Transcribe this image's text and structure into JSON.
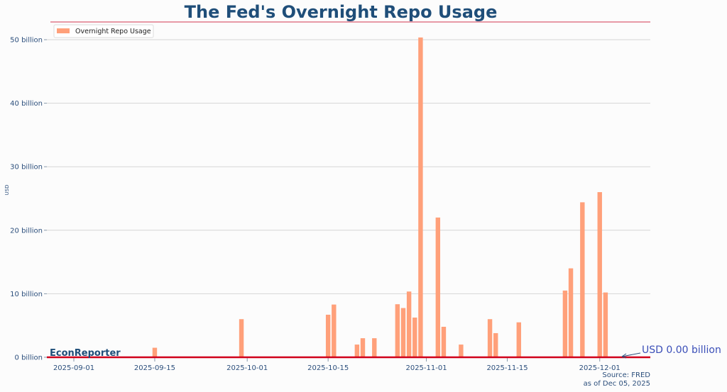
{
  "chart_data": {
    "type": "bar",
    "title": "The Fed's Overnight Repo Usage",
    "ylabel": "USD",
    "xlabel": "",
    "ylim": [
      0,
      52
    ],
    "y_ticks": [
      "0 billion",
      "10 billion",
      "20 billion",
      "30 billion",
      "40 billion",
      "50 billion"
    ],
    "x_ticks": [
      "2025-09-01",
      "2025-09-15",
      "2025-10-01",
      "2025-10-15",
      "2025-11-01",
      "2025-11-15",
      "2025-12-01"
    ],
    "grid": true,
    "legend_position": "top-left",
    "series": [
      {
        "name": "Overnight Repo Usage",
        "color": "#ffa07a",
        "points": [
          [
            "2025-09-09",
            0.1
          ],
          [
            "2025-09-15",
            1.5
          ],
          [
            "2025-09-30",
            6.0
          ],
          [
            "2025-10-03",
            0.1
          ],
          [
            "2025-10-08",
            0.1
          ],
          [
            "2025-10-15",
            6.7
          ],
          [
            "2025-10-16",
            8.3
          ],
          [
            "2025-10-20",
            2.0
          ],
          [
            "2025-10-21",
            3.0
          ],
          [
            "2025-10-23",
            3.0
          ],
          [
            "2025-10-27",
            8.35
          ],
          [
            "2025-10-28",
            7.75
          ],
          [
            "2025-10-29",
            10.35
          ],
          [
            "2025-10-30",
            6.25
          ],
          [
            "2025-10-31",
            50.35
          ],
          [
            "2025-11-03",
            22.0
          ],
          [
            "2025-11-04",
            4.8
          ],
          [
            "2025-11-05",
            0.1
          ],
          [
            "2025-11-07",
            2.0
          ],
          [
            "2025-11-12",
            6.0
          ],
          [
            "2025-11-13",
            3.8
          ],
          [
            "2025-11-17",
            5.5
          ],
          [
            "2025-11-25",
            10.5
          ],
          [
            "2025-11-26",
            14.0
          ],
          [
            "2025-11-28",
            24.4
          ],
          [
            "2025-12-01",
            26.0
          ],
          [
            "2025-12-02",
            10.2
          ]
        ]
      }
    ],
    "annotation": "USD 0.00 billion",
    "reference_line_color": "#d0021b",
    "watermark": "EconReporter",
    "source": "Source: FRED",
    "as_of": "as of Dec 05, 2025"
  }
}
